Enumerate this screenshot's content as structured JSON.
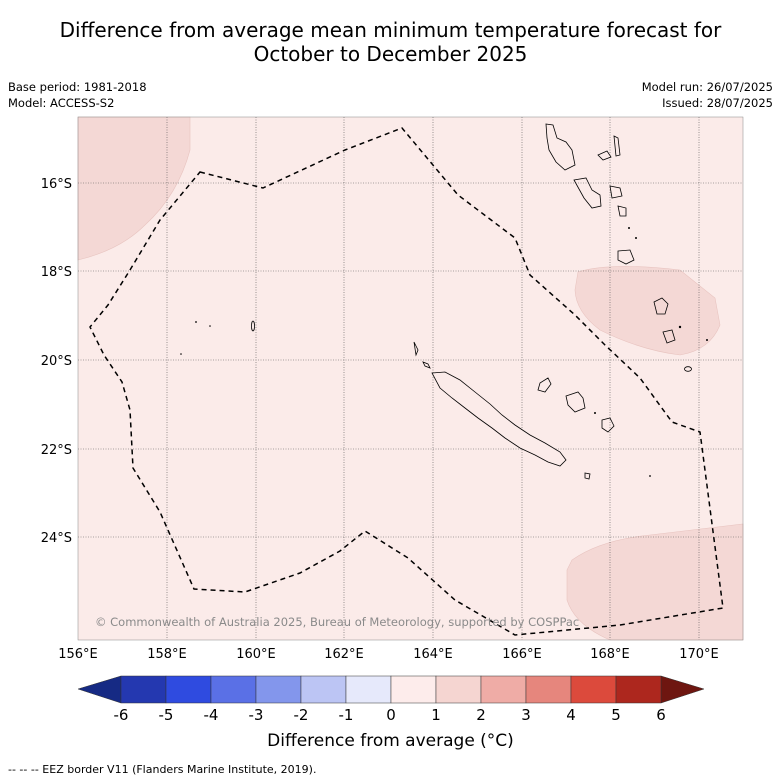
{
  "title_line1": "Difference from average mean minimum temperature forecast for",
  "title_line2": "October to December 2025",
  "base_period": "Base period: 1981-2018",
  "model": "Model: ACCESS-S2",
  "model_run": "Model run: 26/07/2025",
  "issued": "Issued: 28/07/2025",
  "copyright": "© Commonwealth of Australia 2025, Bureau of Meteorology, supported by COSPPac",
  "lon_labels": [
    "156°E",
    "158°E",
    "160°E",
    "162°E",
    "164°E",
    "166°E",
    "168°E",
    "170°E"
  ],
  "lat_labels": [
    "16°S",
    "18°S",
    "20°S",
    "22°S",
    "24°S"
  ],
  "colorbar": {
    "title": "Difference from average (°C)",
    "ticks": [
      "-6",
      "-5",
      "-4",
      "-3",
      "-2",
      "-1",
      "0",
      "1",
      "2",
      "3",
      "4",
      "5",
      "6"
    ],
    "colors": [
      "#162a84",
      "#2438b0",
      "#2f4be0",
      "#5a70e6",
      "#8396ec",
      "#bcc5f4",
      "#e6e9fb",
      "#fdeceb",
      "#f5d5d1",
      "#efaca6",
      "#e6867d",
      "#dc4a3c",
      "#ad271e",
      "#6e1610"
    ]
  },
  "footer": "--  --  -- EEZ border V11 (Flanders Marine Institute, 2019).",
  "map_colors": {
    "background": "#fbebe9",
    "anomaly_1_2": "#f4d8d5"
  }
}
